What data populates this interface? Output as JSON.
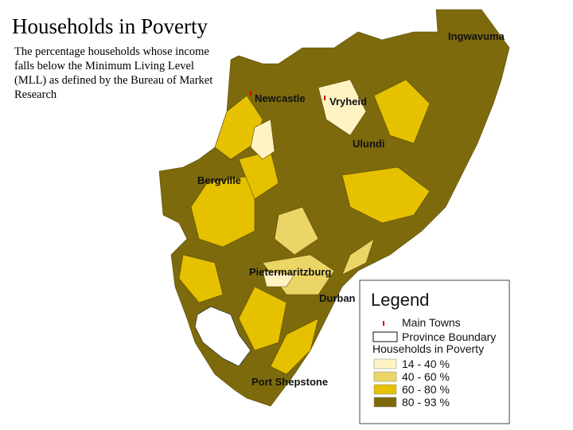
{
  "title": "Households in Poverty",
  "description": "The percentage households whose income falls below the Minimum Living Level (MLL) as defined by the Bureau of Market Research",
  "towns": [
    "Ingwavuma",
    "Newcastle",
    "Vryheid",
    "Ulundi",
    "Bergville",
    "Pietermaritzburg",
    "Durban",
    "Port Shepstone"
  ],
  "legend": {
    "title": "Legend",
    "main_towns": "Main Towns",
    "boundary": "Province Boundary",
    "subtitle": "Households in Poverty",
    "classes": [
      {
        "label": "14 - 40 %",
        "color": "#fff3c4"
      },
      {
        "label": "40 - 60 %",
        "color": "#ebd566"
      },
      {
        "label": "60 - 80 %",
        "color": "#e5c100"
      },
      {
        "label": "80 - 93 %",
        "color": "#7d6a0c"
      }
    ]
  }
}
